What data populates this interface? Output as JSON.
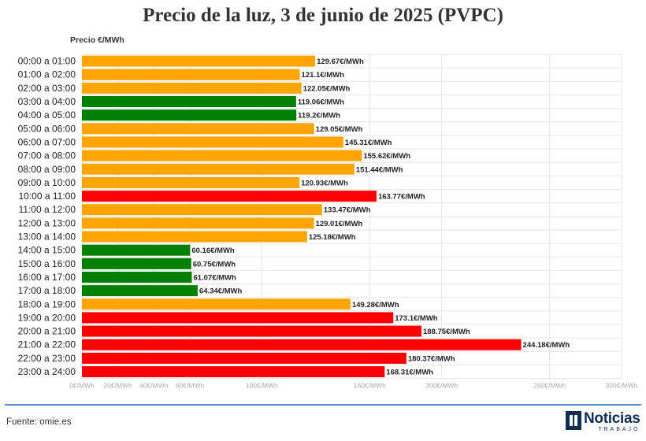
{
  "header": {
    "title": "Precio de la luz, 3 de junio de 2025 (PVPC)",
    "ylabel": "Precio €/MWh"
  },
  "footer": {
    "source": "Fuente: omie.es",
    "logo_main": "Noticias",
    "logo_sub": "TRABAJO"
  },
  "colors": {
    "high": "#ff0000",
    "medium": "#ffa500",
    "low": "#008000",
    "grid": "#e6e6e6",
    "footer_line": "#5a8fbf"
  },
  "chart_data": {
    "type": "bar",
    "orientation": "horizontal",
    "title": "Precio de la luz, 3 de junio de 2025 (PVPC)",
    "ylabel": "Precio €/MWh",
    "xlabel": "",
    "xlim": [
      0,
      300
    ],
    "value_suffix": "€/MWh",
    "grid": true,
    "categories": [
      "00:00 a 01:00",
      "01:00 a 02:00",
      "02:00 a 03:00",
      "03:00 a 04:00",
      "04:00 a 05:00",
      "05:00 a 06:00",
      "06:00 a 07:00",
      "07:00 a 08:00",
      "08:00 a 09:00",
      "09:00 a 10:00",
      "10:00 a 11:00",
      "11:00 a 12:00",
      "12:00 a 13:00",
      "13:00 a 14:00",
      "14:00 a 15:00",
      "15:00 a 16:00",
      "16:00 a 17:00",
      "17:00 a 18:00",
      "18:00 a 19:00",
      "19:00 a 20:00",
      "20:00 a 21:00",
      "21:00 a 22:00",
      "22:00 a 23:00",
      "23:00 a 24:00"
    ],
    "values": [
      129.67,
      121.1,
      122.05,
      119.06,
      119.2,
      129.05,
      145.31,
      155.62,
      151.44,
      120.93,
      163.77,
      133.47,
      129.01,
      125.18,
      60.16,
      60.75,
      61.07,
      64.34,
      149.28,
      173.1,
      188.75,
      244.18,
      180.37,
      168.31
    ],
    "value_labels": [
      "129.67€/MWh",
      "121.1€/MWh",
      "122.05€/MWh",
      "119.06€/MWh",
      "119.2€/MWh",
      "129.05€/MWh",
      "145.31€/MWh",
      "155.62€/MWh",
      "151.44€/MWh",
      "120.93€/MWh",
      "163.77€/MWh",
      "133.47€/MWh",
      "129.01€/MWh",
      "125.18€/MWh",
      "60.16€/MWh",
      "60.75€/MWh",
      "61.07€/MWh",
      "64.34€/MWh",
      "149.28€/MWh",
      "173.1€/MWh",
      "188.75€/MWh",
      "244.18€/MWh",
      "180.37€/MWh",
      "168.31€/MWh"
    ],
    "levels": [
      "medium",
      "medium",
      "medium",
      "low",
      "low",
      "medium",
      "medium",
      "medium",
      "medium",
      "medium",
      "high",
      "medium",
      "medium",
      "medium",
      "low",
      "low",
      "low",
      "low",
      "medium",
      "high",
      "high",
      "high",
      "high",
      "high"
    ],
    "ticks": [
      0,
      20,
      40,
      60,
      100,
      160,
      200,
      260,
      300
    ],
    "tick_labels": [
      "0€/MWh",
      "20€/MWh",
      "40€/MWh",
      "60€/MWh",
      "100€/MWh",
      "160€/MWh",
      "200€/MWh",
      "260€/MWh",
      "300€/MWh"
    ]
  }
}
